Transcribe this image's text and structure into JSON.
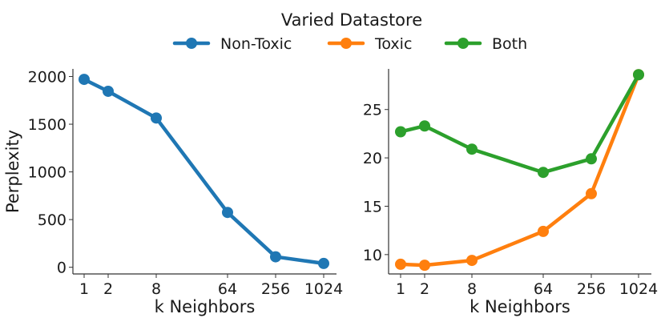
{
  "chart_data": {
    "type": "line",
    "title": "Varied Datastore",
    "legend": {
      "position": "top-center",
      "entries": [
        {
          "name": "Non-Toxic",
          "color": "#1f77b4"
        },
        {
          "name": "Toxic",
          "color": "#ff7f0e"
        },
        {
          "name": "Both",
          "color": "#2ca02c"
        }
      ]
    },
    "panels": [
      {
        "xlabel": "k Neighbors",
        "ylabel": "Perplexity",
        "x_ticks": [
          "1",
          "2",
          "8",
          "64",
          "256",
          "1024"
        ],
        "y_ticks": [
          0,
          500,
          1000,
          1500,
          2000
        ],
        "ylim": [
          -70,
          2080
        ],
        "grid": false,
        "series": [
          {
            "name": "Non-Toxic",
            "color": "#1f77b4",
            "values": [
              1970,
              1845,
              1565,
              575,
              110,
              40
            ]
          }
        ]
      },
      {
        "xlabel": "k Neighbors",
        "ylabel": "",
        "x_ticks": [
          "1",
          "2",
          "8",
          "64",
          "256",
          "1024"
        ],
        "y_ticks": [
          10,
          15,
          20,
          25
        ],
        "ylim": [
          8.0,
          29.2
        ],
        "grid": false,
        "series": [
          {
            "name": "Toxic",
            "color": "#ff7f0e",
            "values": [
              9.0,
              8.9,
              9.4,
              12.4,
              16.3,
              28.6
            ]
          },
          {
            "name": "Both",
            "color": "#2ca02c",
            "values": [
              22.7,
              23.3,
              20.9,
              18.5,
              19.9,
              28.6
            ]
          }
        ]
      }
    ]
  }
}
